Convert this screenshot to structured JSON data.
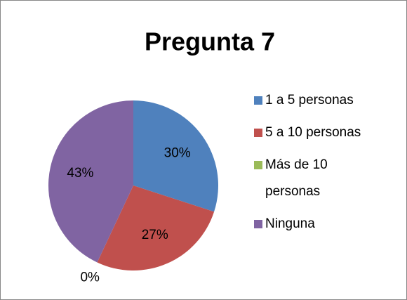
{
  "chart_data": {
    "type": "pie",
    "title": "Pregunta 7",
    "categories": [
      "1 a 5 personas",
      "5 a 10 personas",
      "Más de 10 personas",
      "Ninguna"
    ],
    "values": [
      30,
      27,
      0,
      43
    ],
    "value_labels": [
      "30%",
      "27%",
      "0%",
      "43%"
    ],
    "colors": [
      "#4f81bd",
      "#c0504d",
      "#9bbb59",
      "#8064a2"
    ],
    "legend": "right"
  }
}
